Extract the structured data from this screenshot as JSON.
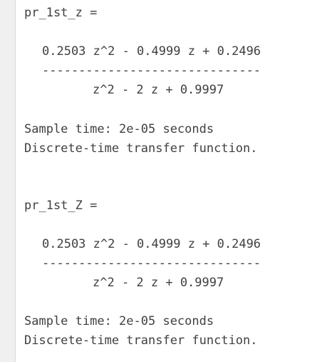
{
  "console": {
    "blocks": [
      {
        "var_label": "pr_1st_z =",
        "numerator": "0.2503 z^2 - 0.4999 z + 0.2496",
        "fraction_bar": "------------------------------",
        "denominator": "z^2 - 2 z + 0.9997",
        "sample_time": "Sample time: 2e-05 seconds",
        "description": "Discrete-time transfer function."
      },
      {
        "var_label": "pr_1st_Z =",
        "numerator": "0.2503 z^2 - 0.4999 z + 0.2496",
        "fraction_bar": "------------------------------",
        "denominator": "z^2 - 2 z + 0.9997",
        "sample_time": "Sample time: 2e-05 seconds",
        "description": "Discrete-time transfer function."
      }
    ]
  },
  "colors": {
    "text": "#404040",
    "gutter": "#f0f0f0",
    "background": "#ffffff"
  }
}
